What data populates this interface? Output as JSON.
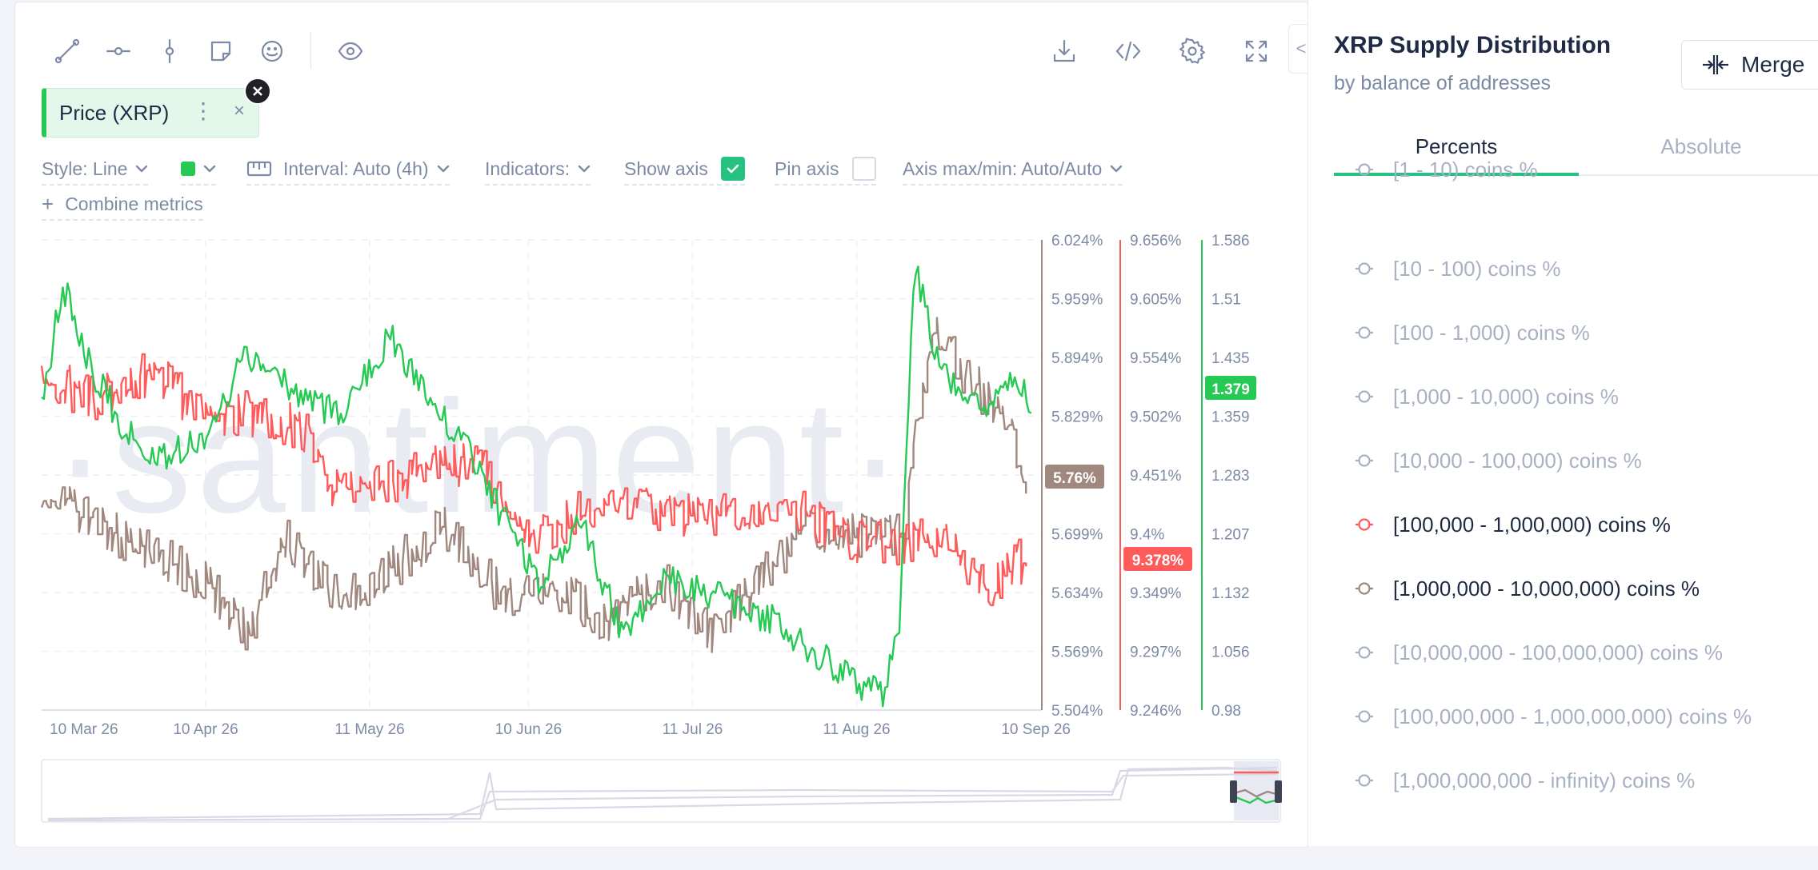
{
  "toolbar": {
    "left_icons": [
      "trend-line-icon",
      "horizontal-ray-icon",
      "vertical-line-icon",
      "note-icon",
      "emoji-icon",
      "eye-icon"
    ],
    "right_icons": [
      "download-icon",
      "embed-code-icon",
      "settings-gear-icon",
      "fullscreen-icon"
    ]
  },
  "metric_chip": {
    "label": "Price (XRP)",
    "menu_glyph": "⋮",
    "close_glyph": "×",
    "color": "#26c953"
  },
  "options": {
    "style": "Style: Line",
    "interval": "Interval: Auto (4h)",
    "indicators": "Indicators:",
    "show_axis": "Show axis",
    "show_axis_checked": true,
    "pin_axis": "Pin axis",
    "pin_axis_checked": false,
    "axis_maxmin": "Axis max/min: Auto/Auto",
    "combine": "Combine metrics"
  },
  "chart_data": {
    "type": "line",
    "watermark": "·santiment·",
    "x_ticks": [
      "10 Mar 26",
      "10 Apr 26",
      "11 May 26",
      "10 Jun 26",
      "11 Jul 26",
      "11 Aug 26",
      "10 Sep 26"
    ],
    "x_range": [
      "2026-03-10",
      "2026-09-15"
    ],
    "series": [
      {
        "name": "[1,000,000 - 10,000,000) coins %",
        "color": "#a1887f",
        "axis_ticks": [
          "6.024%",
          "5.959%",
          "5.894%",
          "5.829%",
          "5.764%",
          "5.699%",
          "5.634%",
          "5.569%",
          "5.504%"
        ],
        "ylim": [
          5.504,
          6.024
        ],
        "last_value_label": "5.76%",
        "x": [
          "2026-03-10",
          "2026-03-20",
          "2026-03-31",
          "2026-04-10",
          "2026-04-18",
          "2026-04-25",
          "2026-05-05",
          "2026-05-15",
          "2026-05-25",
          "2026-06-05",
          "2026-06-15",
          "2026-06-25",
          "2026-07-05",
          "2026-07-15",
          "2026-07-25",
          "2026-08-01",
          "2026-08-10",
          "2026-08-16",
          "2026-08-20",
          "2026-08-25",
          "2026-09-01",
          "2026-09-08",
          "2026-09-12"
        ],
        "values": [
          5.754,
          5.709,
          5.679,
          5.642,
          5.588,
          5.699,
          5.629,
          5.659,
          5.709,
          5.629,
          5.639,
          5.599,
          5.649,
          5.589,
          5.654,
          5.709,
          5.699,
          5.699,
          5.699,
          5.929,
          5.869,
          5.834,
          5.759
        ]
      },
      {
        "name": "[100,000 - 1,000,000) coins %",
        "color": "#ff5b5b",
        "axis_ticks": [
          "9.656%",
          "9.605%",
          "9.554%",
          "9.502%",
          "9.451%",
          "9.4%",
          "9.349%",
          "9.297%",
          "9.246%"
        ],
        "ylim": [
          9.246,
          9.656
        ],
        "last_value_label": "9.378%",
        "x": [
          "2026-03-10",
          "2026-03-20",
          "2026-04-01",
          "2026-04-10",
          "2026-04-20",
          "2026-04-30",
          "2026-05-05",
          "2026-05-15",
          "2026-05-25",
          "2026-06-01",
          "2026-06-10",
          "2026-06-20",
          "2026-06-30",
          "2026-07-10",
          "2026-07-20",
          "2026-07-30",
          "2026-08-08",
          "2026-08-18",
          "2026-08-28",
          "2026-09-05",
          "2026-09-12"
        ],
        "values": [
          9.537,
          9.518,
          9.542,
          9.497,
          9.506,
          9.486,
          9.433,
          9.444,
          9.46,
          9.457,
          9.394,
          9.419,
          9.424,
          9.418,
          9.413,
          9.427,
          9.395,
          9.392,
          9.394,
          9.356,
          9.379
        ]
      },
      {
        "name": "Price (XRP)",
        "color": "#26c953",
        "axis_ticks": [
          "1.586",
          "1.51",
          "1.435",
          "1.359",
          "1.283",
          "1.207",
          "1.132",
          "1.056",
          "0.98"
        ],
        "ylim": [
          0.98,
          1.586
        ],
        "last_value_label": "1.379",
        "x": [
          "2026-03-10",
          "2026-03-14",
          "2026-03-18",
          "2026-03-25",
          "2026-04-01",
          "2026-04-10",
          "2026-04-18",
          "2026-04-25",
          "2026-05-05",
          "2026-05-15",
          "2026-05-22",
          "2026-05-30",
          "2026-06-05",
          "2026-06-12",
          "2026-06-20",
          "2026-06-28",
          "2026-07-05",
          "2026-07-15",
          "2026-07-25",
          "2026-08-02",
          "2026-08-10",
          "2026-08-16",
          "2026-08-19",
          "2026-08-22",
          "2026-08-26",
          "2026-08-31",
          "2026-09-05",
          "2026-09-10",
          "2026-09-13"
        ],
        "values": [
          1.37,
          1.53,
          1.44,
          1.35,
          1.3,
          1.33,
          1.44,
          1.4,
          1.36,
          1.46,
          1.38,
          1.31,
          1.23,
          1.15,
          1.22,
          1.07,
          1.15,
          1.13,
          1.1,
          1.06,
          1.02,
          1.0,
          1.08,
          1.56,
          1.43,
          1.38,
          1.36,
          1.42,
          1.375
        ]
      }
    ]
  },
  "side_panel": {
    "title": "XRP Supply Distribution",
    "subtitle": "by balance of addresses",
    "merge_label": "Merge",
    "tabs": [
      "Percents",
      "Absolute"
    ],
    "metrics": [
      {
        "label": "[1 - 10) coins %",
        "active": false,
        "color": "#a8b1c4"
      },
      {
        "label": "[10 - 100) coins %",
        "active": false,
        "color": "#a8b1c4"
      },
      {
        "label": "[100 - 1,000) coins %",
        "active": false,
        "color": "#a8b1c4"
      },
      {
        "label": "[1,000 - 10,000) coins %",
        "active": false,
        "color": "#a8b1c4"
      },
      {
        "label": "[10,000 - 100,000) coins %",
        "active": false,
        "color": "#a8b1c4"
      },
      {
        "label": "[100,000 - 1,000,000) coins %",
        "active": true,
        "color": "#ff5b5b"
      },
      {
        "label": "[1,000,000 - 10,000,000) coins %",
        "active": true,
        "color": "#a1887f"
      },
      {
        "label": "[10,000,000 - 100,000,000) coins %",
        "active": false,
        "color": "#a8b1c4"
      },
      {
        "label": "[100,000,000 - 1,000,000,000) coins %",
        "active": false,
        "color": "#a8b1c4"
      },
      {
        "label": "[1,000,000,000 - infinity) coins %",
        "active": false,
        "color": "#a8b1c4"
      }
    ]
  }
}
